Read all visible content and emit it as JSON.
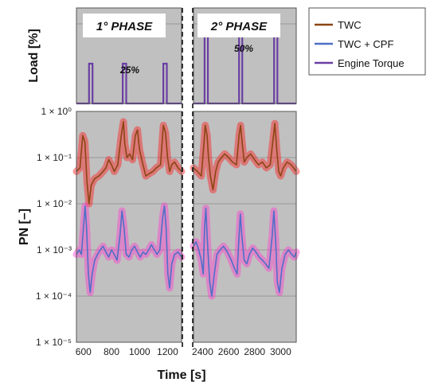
{
  "chart_data": [
    {
      "panel": "load",
      "type": "line",
      "ylabel": "Load [%]",
      "phases": [
        {
          "label": "1° PHASE",
          "load_label": "25%"
        },
        {
          "label": "2° PHASE",
          "load_label": "50%"
        }
      ],
      "series": [
        {
          "name": "Engine Torque",
          "color": "#6a3fa3",
          "pulses": [
            {
              "start": 640,
              "end": 665,
              "value": 25
            },
            {
              "start": 880,
              "end": 905,
              "value": 25
            },
            {
              "start": 1170,
              "end": 1195,
              "value": 25
            },
            {
              "start": 2415,
              "end": 2440,
              "value": 50
            },
            {
              "start": 2680,
              "end": 2705,
              "value": 50
            },
            {
              "start": 2950,
              "end": 2975,
              "value": 50
            }
          ]
        }
      ],
      "ylim": [
        0,
        60
      ]
    },
    {
      "panel": "pn",
      "type": "line",
      "xlabel": "Time [s]",
      "ylabel": "PN [–]",
      "yscale": "log",
      "ylim": [
        1e-05,
        1
      ],
      "ytick_labels": [
        "1 × 10⁰",
        "1 × 10⁻¹",
        "1 × 10⁻²",
        "1 × 10⁻³",
        "1 × 10⁻⁴",
        "1 × 10⁻⁵"
      ],
      "xtick_labels": [
        "600",
        "800",
        "1000",
        "1200",
        "2400",
        "2600",
        "2800",
        "3000"
      ],
      "segments": [
        {
          "xlim": [
            550,
            1300
          ],
          "xticks": [
            600,
            800,
            1000,
            1200
          ]
        },
        {
          "xlim": [
            2330,
            3120
          ],
          "xticks": [
            2400,
            2600,
            2800,
            3000
          ]
        }
      ],
      "grid": true,
      "legend": [
        "TWC",
        "TWC + CPF",
        "Engine Torque"
      ],
      "series": [
        {
          "name": "TWC",
          "color": "#8b4513",
          "band_color": "#ff2020",
          "points": [
            [
              550,
              0.05
            ],
            [
              575,
              0.06
            ],
            [
              595,
              0.3
            ],
            [
              610,
              0.22
            ],
            [
              625,
              0.03
            ],
            [
              640,
              0.01
            ],
            [
              655,
              0.025
            ],
            [
              680,
              0.035
            ],
            [
              710,
              0.04
            ],
            [
              740,
              0.05
            ],
            [
              760,
              0.06
            ],
            [
              780,
              0.09
            ],
            [
              800,
              0.07
            ],
            [
              820,
              0.05
            ],
            [
              845,
              0.07
            ],
            [
              870,
              0.3
            ],
            [
              885,
              0.6
            ],
            [
              895,
              0.2
            ],
            [
              910,
              0.1
            ],
            [
              930,
              0.12
            ],
            [
              950,
              0.09
            ],
            [
              970,
              0.3
            ],
            [
              985,
              0.4
            ],
            [
              1000,
              0.15
            ],
            [
              1020,
              0.08
            ],
            [
              1045,
              0.04
            ],
            [
              1070,
              0.045
            ],
            [
              1095,
              0.05
            ],
            [
              1120,
              0.06
            ],
            [
              1150,
              0.07
            ],
            [
              1170,
              0.5
            ],
            [
              1185,
              0.35
            ],
            [
              1200,
              0.1
            ],
            [
              1215,
              0.05
            ],
            [
              1230,
              0.07
            ],
            [
              1250,
              0.08
            ],
            [
              1275,
              0.06
            ],
            [
              1300,
              0.05
            ],
            [
              2330,
              0.06
            ],
            [
              2360,
              0.05
            ],
            [
              2390,
              0.04
            ],
            [
              2410,
              0.2
            ],
            [
              2420,
              0.5
            ],
            [
              2435,
              0.3
            ],
            [
              2445,
              0.1
            ],
            [
              2460,
              0.04
            ],
            [
              2480,
              0.02
            ],
            [
              2500,
              0.05
            ],
            [
              2520,
              0.08
            ],
            [
              2545,
              0.1
            ],
            [
              2570,
              0.12
            ],
            [
              2600,
              0.1
            ],
            [
              2630,
              0.08
            ],
            [
              2660,
              0.07
            ],
            [
              2680,
              0.3
            ],
            [
              2692,
              0.5
            ],
            [
              2705,
              0.2
            ],
            [
              2720,
              0.08
            ],
            [
              2740,
              0.1
            ],
            [
              2770,
              0.12
            ],
            [
              2800,
              0.09
            ],
            [
              2830,
              0.07
            ],
            [
              2860,
              0.08
            ],
            [
              2890,
              0.06
            ],
            [
              2920,
              0.07
            ],
            [
              2945,
              0.3
            ],
            [
              2955,
              0.55
            ],
            [
              2970,
              0.15
            ],
            [
              2985,
              0.05
            ],
            [
              3000,
              0.04
            ],
            [
              3020,
              0.06
            ],
            [
              3050,
              0.08
            ],
            [
              3080,
              0.07
            ],
            [
              3100,
              0.06
            ],
            [
              3120,
              0.05
            ]
          ]
        },
        {
          "name": "TWC + CPF",
          "color": "#4f6fc7",
          "band_color": "#ff40d0",
          "points": [
            [
              550,
              0.0008
            ],
            [
              570,
              0.001
            ],
            [
              585,
              0.0008
            ],
            [
              600,
              0.003
            ],
            [
              612,
              0.009
            ],
            [
              622,
              0.003
            ],
            [
              635,
              0.0003
            ],
            [
              648,
              0.00012
            ],
            [
              662,
              0.0003
            ],
            [
              680,
              0.0006
            ],
            [
              700,
              0.0008
            ],
            [
              720,
              0.001
            ],
            [
              740,
              0.0012
            ],
            [
              760,
              0.0009
            ],
            [
              780,
              0.0007
            ],
            [
              800,
              0.001
            ],
            [
              820,
              0.0008
            ],
            [
              840,
              0.0006
            ],
            [
              860,
              0.002
            ],
            [
              875,
              0.007
            ],
            [
              890,
              0.003
            ],
            [
              905,
              0.0008
            ],
            [
              925,
              0.0007
            ],
            [
              945,
              0.001
            ],
            [
              965,
              0.0012
            ],
            [
              985,
              0.0009
            ],
            [
              1005,
              0.0007
            ],
            [
              1025,
              0.0009
            ],
            [
              1045,
              0.0008
            ],
            [
              1065,
              0.001
            ],
            [
              1085,
              0.0013
            ],
            [
              1105,
              0.001
            ],
            [
              1125,
              0.0008
            ],
            [
              1145,
              0.001
            ],
            [
              1165,
              0.005
            ],
            [
              1178,
              0.009
            ],
            [
              1190,
              0.003
            ],
            [
              1202,
              0.0003
            ],
            [
              1215,
              0.00015
            ],
            [
              1230,
              0.0005
            ],
            [
              1250,
              0.0008
            ],
            [
              1275,
              0.0009
            ],
            [
              1300,
              0.0007
            ],
            [
              2330,
              0.0012
            ],
            [
              2350,
              0.0015
            ],
            [
              2370,
              0.001
            ],
            [
              2390,
              0.0006
            ],
            [
              2405,
              0.0003
            ],
            [
              2415,
              0.003
            ],
            [
              2425,
              0.008
            ],
            [
              2440,
              0.001
            ],
            [
              2455,
              0.0002
            ],
            [
              2470,
              0.0001
            ],
            [
              2490,
              0.0003
            ],
            [
              2510,
              0.0008
            ],
            [
              2535,
              0.001
            ],
            [
              2560,
              0.0012
            ],
            [
              2590,
              0.0009
            ],
            [
              2620,
              0.0006
            ],
            [
              2645,
              0.0004
            ],
            [
              2665,
              0.0003
            ],
            [
              2680,
              0.002
            ],
            [
              2690,
              0.006
            ],
            [
              2702,
              0.002
            ],
            [
              2720,
              0.0006
            ],
            [
              2740,
              0.0005
            ],
            [
              2760,
              0.0008
            ],
            [
              2785,
              0.0011
            ],
            [
              2810,
              0.0009
            ],
            [
              2835,
              0.0007
            ],
            [
              2860,
              0.0006
            ],
            [
              2885,
              0.0005
            ],
            [
              2910,
              0.0004
            ],
            [
              2935,
              0.002
            ],
            [
              2948,
              0.007
            ],
            [
              2962,
              0.0015
            ],
            [
              2975,
              0.0002
            ],
            [
              2990,
              0.00012
            ],
            [
              3010,
              0.0004
            ],
            [
              3035,
              0.0008
            ],
            [
              3060,
              0.001
            ],
            [
              3085,
              0.0008
            ],
            [
              3105,
              0.0007
            ],
            [
              3120,
              0.0009
            ]
          ]
        }
      ]
    }
  ]
}
